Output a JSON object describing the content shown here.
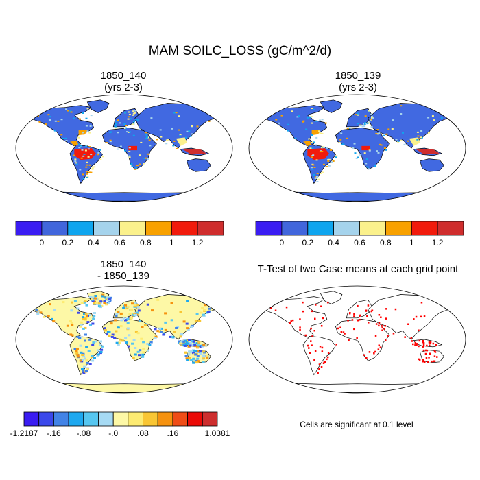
{
  "figure": {
    "title": "MAM SOILC_LOSS (gC/m^2/d)",
    "note": "Cells are significant at 0.1 level"
  },
  "panels": [
    {
      "name": "case-1",
      "title_line1": "1850_140",
      "title_line2": "(yrs 2-3)"
    },
    {
      "name": "case-2",
      "title_line1": "1850_139",
      "title_line2": "(yrs 2-3)"
    },
    {
      "name": "difference",
      "title_line1": "1850_140",
      "title_line2": "- 1850_139"
    },
    {
      "name": "ttest",
      "title_line1": "T-Test of two Case means at each grid point",
      "title_line2": ""
    }
  ],
  "colorbars": {
    "absolute": {
      "colors": [
        "#3a1cf2",
        "#4166dc",
        "#0fa5ee",
        "#a5d3ec",
        "#fbf18c",
        "#f8a100",
        "#f11b0c",
        "#cf2d2d"
      ],
      "labels": [
        "0",
        "0.2",
        "0.4",
        "0.6",
        "0.8",
        "1",
        "1.2"
      ]
    },
    "difference": {
      "colors": [
        "#3a1cf2",
        "#3b48ea",
        "#4283e6",
        "#1ea8ef",
        "#56c6f0",
        "#a6daf3",
        "#fdf8a6",
        "#fdeb72",
        "#f9c634",
        "#f6920f",
        "#ef4d17",
        "#ea0a06",
        "#cd2e2e"
      ],
      "labels": [
        "-1.2187",
        "-.16",
        "-.08",
        "-.0",
        ".08",
        ".16",
        "1.0381"
      ]
    }
  },
  "colors": {
    "ocean": "#ffffff",
    "land_base": "#4169e1",
    "coast": "#000000",
    "significance": "#ff0000"
  }
}
